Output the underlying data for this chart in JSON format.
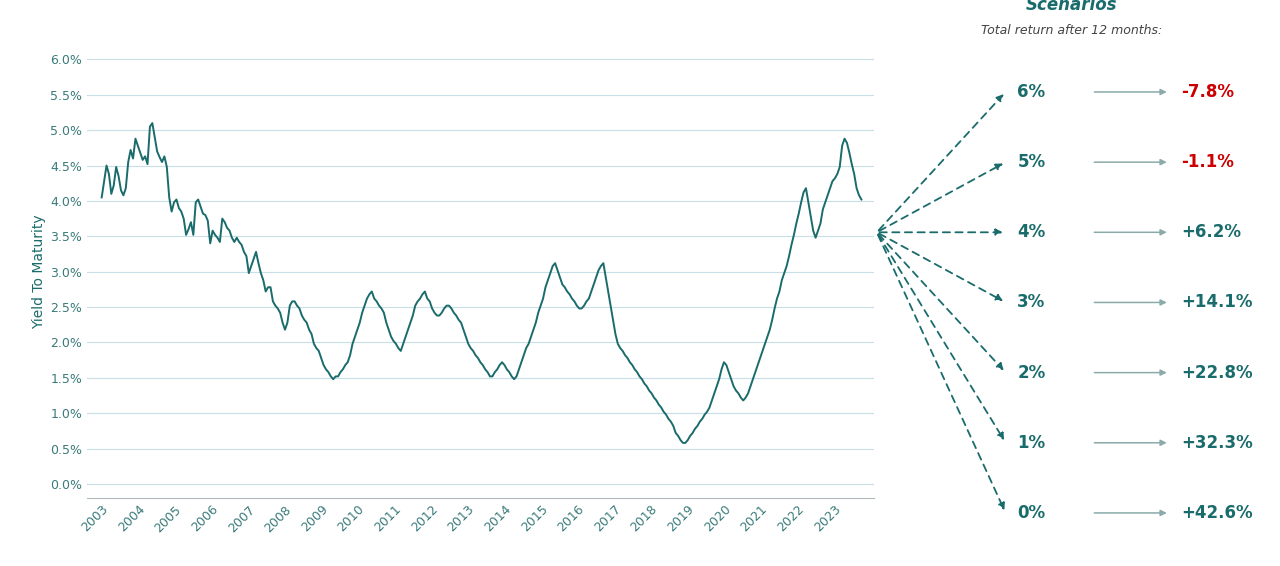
{
  "line_color": "#1a6b6b",
  "bg_color": "#ffffff",
  "scenario_bg_color": "#daeaf3",
  "grid_color": "#c8dfe8",
  "ylabel": "Yield To Maturity",
  "yticks": [
    0.0,
    0.005,
    0.01,
    0.015,
    0.02,
    0.025,
    0.03,
    0.035,
    0.04,
    0.045,
    0.05,
    0.055,
    0.06
  ],
  "ytick_labels": [
    "0.0%",
    "0.5%",
    "1.0%",
    "1.5%",
    "2.0%",
    "2.5%",
    "3.0%",
    "3.5%",
    "4.0%",
    "4.5%",
    "5.0%",
    "5.5%",
    "6.0%"
  ],
  "scenarios_title": "Scenarios",
  "scenarios_subtitle": "Total return after 12 months:",
  "scenarios": [
    {
      "ytm": 0.06,
      "label": "6%",
      "return": "-7.8%",
      "return_color": "#cc0000"
    },
    {
      "ytm": 0.05,
      "label": "5%",
      "return": "-1.1%",
      "return_color": "#cc0000"
    },
    {
      "ytm": 0.04,
      "label": "4%",
      "return": "+6.2%",
      "return_color": "#1a6b6b"
    },
    {
      "ytm": 0.03,
      "label": "3%",
      "return": "+14.1%",
      "return_color": "#1a6b6b"
    },
    {
      "ytm": 0.02,
      "label": "2%",
      "return": "+22.8%",
      "return_color": "#1a6b6b"
    },
    {
      "ytm": 0.01,
      "label": "1%",
      "return": "+32.3%",
      "return_color": "#1a6b6b"
    },
    {
      "ytm": 0.0,
      "label": "0%",
      "return": "+42.6%",
      "return_color": "#1a6b6b"
    }
  ],
  "current_ytm": 0.042,
  "arrow_color": "#1a6b6b",
  "xtick_labels": [
    "2003",
    "2004",
    "2005",
    "2006",
    "2007",
    "2008",
    "2009",
    "2010",
    "2011",
    "2012",
    "2013",
    "2014",
    "2015",
    "2016",
    "2017",
    "2018",
    "2019",
    "2020",
    "2021",
    "2022",
    "2023"
  ],
  "ytm_data": [
    4.05,
    4.28,
    4.5,
    4.38,
    4.1,
    4.22,
    4.48,
    4.35,
    4.15,
    4.08,
    4.18,
    4.55,
    4.72,
    4.6,
    4.88,
    4.78,
    4.68,
    4.58,
    4.63,
    4.52,
    5.05,
    5.1,
    4.9,
    4.7,
    4.62,
    4.55,
    4.63,
    4.48,
    4.05,
    3.85,
    3.98,
    4.02,
    3.9,
    3.85,
    3.75,
    3.52,
    3.6,
    3.7,
    3.52,
    3.98,
    4.02,
    3.92,
    3.82,
    3.8,
    3.72,
    3.4,
    3.58,
    3.52,
    3.48,
    3.42,
    3.75,
    3.7,
    3.62,
    3.58,
    3.48,
    3.42,
    3.48,
    3.42,
    3.38,
    3.28,
    3.22,
    2.98,
    3.08,
    3.18,
    3.28,
    3.12,
    2.98,
    2.88,
    2.72,
    2.78,
    2.78,
    2.58,
    2.52,
    2.48,
    2.42,
    2.28,
    2.18,
    2.28,
    2.52,
    2.58,
    2.58,
    2.52,
    2.48,
    2.38,
    2.32,
    2.28,
    2.18,
    2.12,
    1.98,
    1.92,
    1.88,
    1.78,
    1.68,
    1.62,
    1.58,
    1.52,
    1.48,
    1.52,
    1.52,
    1.58,
    1.62,
    1.68,
    1.72,
    1.82,
    1.98,
    2.08,
    2.18,
    2.28,
    2.42,
    2.52,
    2.62,
    2.68,
    2.72,
    2.62,
    2.58,
    2.52,
    2.48,
    2.42,
    2.28,
    2.18,
    2.08,
    2.02,
    1.98,
    1.92,
    1.88,
    1.98,
    2.08,
    2.18,
    2.28,
    2.38,
    2.52,
    2.58,
    2.62,
    2.68,
    2.72,
    2.62,
    2.58,
    2.48,
    2.42,
    2.38,
    2.38,
    2.42,
    2.48,
    2.52,
    2.52,
    2.48,
    2.42,
    2.38,
    2.32,
    2.28,
    2.18,
    2.08,
    1.98,
    1.92,
    1.88,
    1.82,
    1.78,
    1.72,
    1.68,
    1.62,
    1.58,
    1.52,
    1.52,
    1.58,
    1.62,
    1.68,
    1.72,
    1.68,
    1.62,
    1.58,
    1.52,
    1.48,
    1.52,
    1.62,
    1.72,
    1.82,
    1.92,
    1.98,
    2.08,
    2.18,
    2.28,
    2.42,
    2.52,
    2.62,
    2.78,
    2.88,
    2.98,
    3.08,
    3.12,
    3.02,
    2.92,
    2.82,
    2.78,
    2.72,
    2.68,
    2.62,
    2.58,
    2.52,
    2.48,
    2.48,
    2.52,
    2.58,
    2.62,
    2.72,
    2.82,
    2.92,
    3.02,
    3.08,
    3.12,
    2.92,
    2.72,
    2.52,
    2.32,
    2.12,
    1.98,
    1.92,
    1.88,
    1.82,
    1.78,
    1.72,
    1.68,
    1.62,
    1.58,
    1.52,
    1.48,
    1.42,
    1.38,
    1.32,
    1.28,
    1.22,
    1.18,
    1.12,
    1.08,
    1.02,
    0.98,
    0.92,
    0.88,
    0.82,
    0.72,
    0.68,
    0.62,
    0.58,
    0.58,
    0.62,
    0.68,
    0.72,
    0.78,
    0.82,
    0.88,
    0.92,
    0.98,
    1.02,
    1.08,
    1.18,
    1.28,
    1.38,
    1.48,
    1.62,
    1.72,
    1.68,
    1.58,
    1.48,
    1.38,
    1.32,
    1.28,
    1.22,
    1.18,
    1.22,
    1.28,
    1.38,
    1.48,
    1.58,
    1.68,
    1.78,
    1.88,
    1.98,
    2.08,
    2.18,
    2.32,
    2.48,
    2.62,
    2.72,
    2.88,
    2.98,
    3.08,
    3.22,
    3.38,
    3.52,
    3.68,
    3.82,
    3.98,
    4.12,
    4.18,
    3.98,
    3.78,
    3.58,
    3.48,
    3.58,
    3.68,
    3.88,
    3.98,
    4.08,
    4.18,
    4.28,
    4.32,
    4.38,
    4.48,
    4.78,
    4.88,
    4.82,
    4.68,
    4.52,
    4.38,
    4.18,
    4.08,
    4.02
  ]
}
